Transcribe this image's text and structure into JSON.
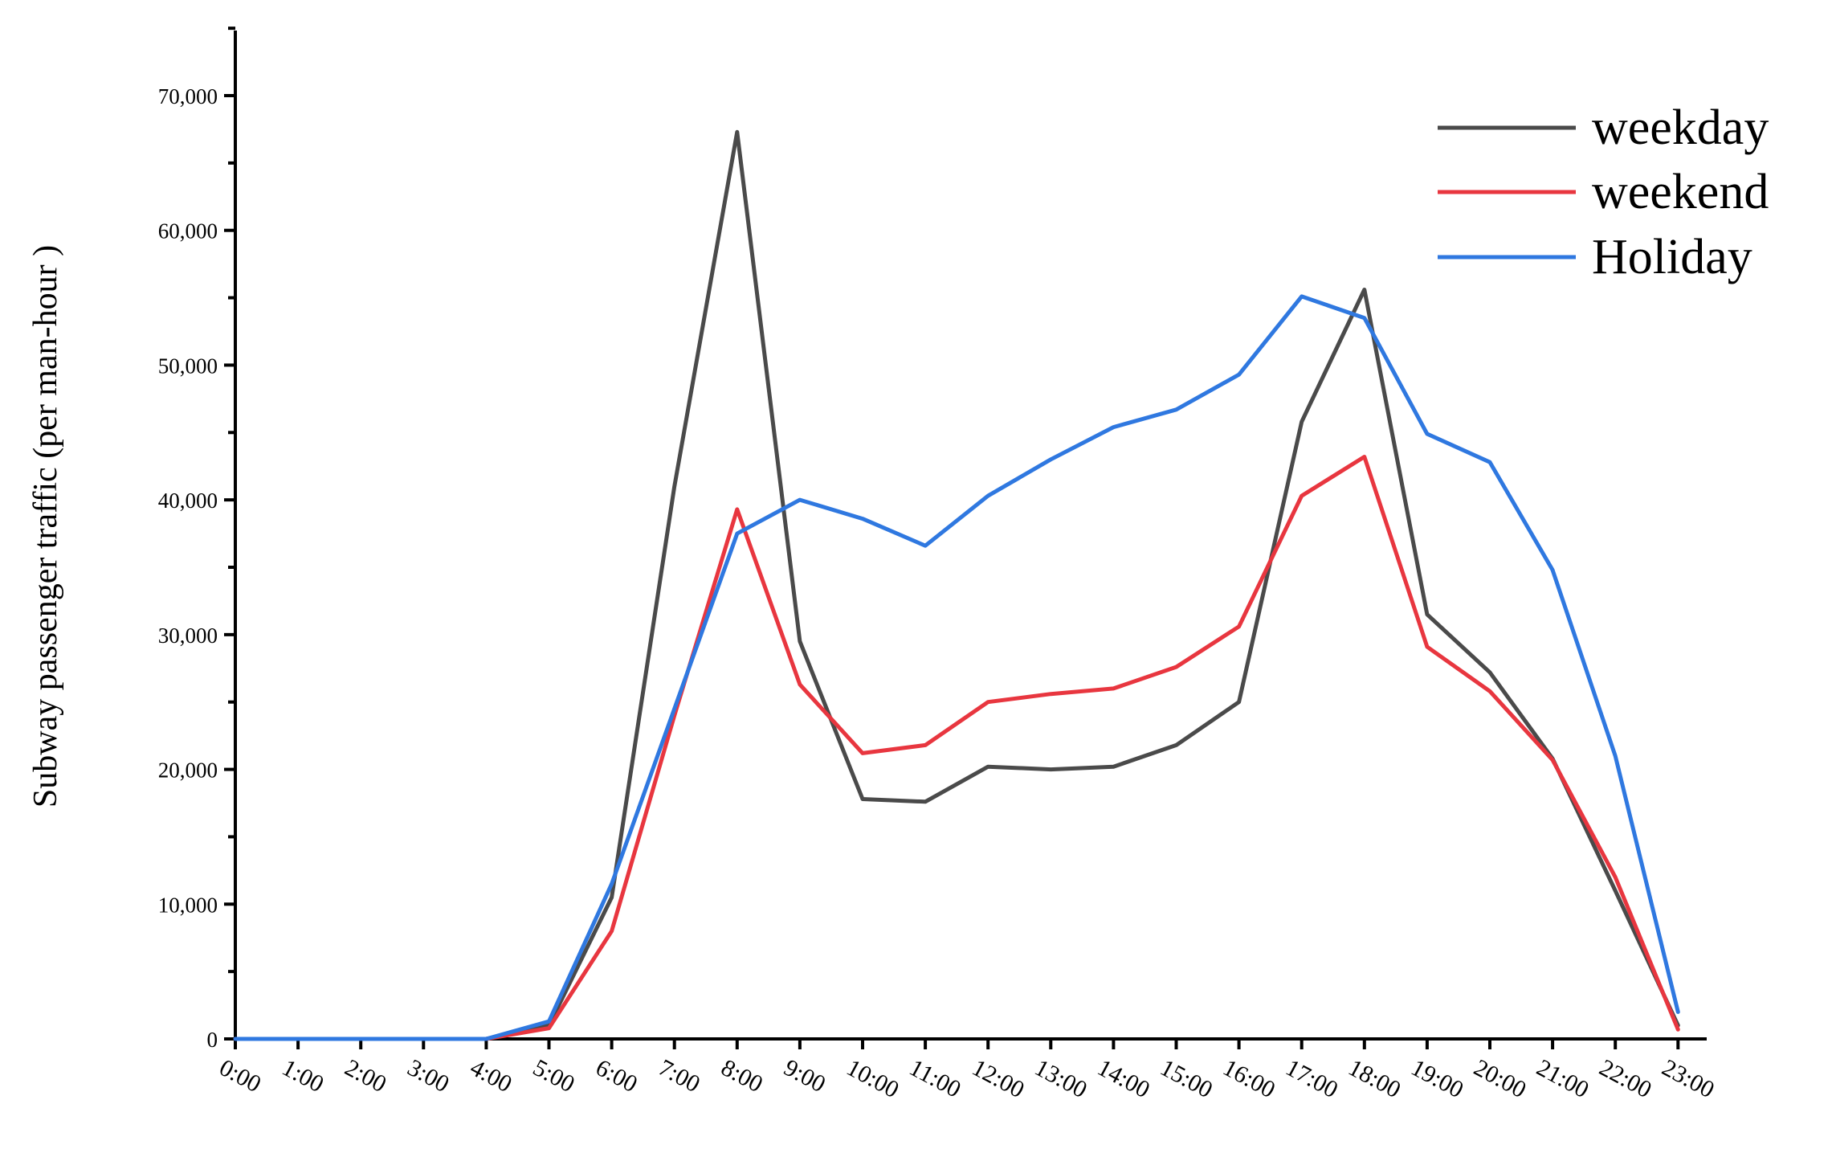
{
  "chart_data": {
    "type": "line",
    "title": "",
    "xlabel": "",
    "ylabel": "Subway passenger traffic (per man-hour )",
    "categories": [
      "0:00",
      "1:00",
      "2:00",
      "3:00",
      "4:00",
      "5:00",
      "6:00",
      "7:00",
      "8:00",
      "9:00",
      "10:00",
      "11:00",
      "12:00",
      "13:00",
      "14:00",
      "15:00",
      "16:00",
      "17:00",
      "18:00",
      "19:00",
      "20:00",
      "21:00",
      "22:00",
      "23:00"
    ],
    "ylim": [
      0,
      75000
    ],
    "yticks": [
      0,
      10000,
      20000,
      30000,
      40000,
      50000,
      60000,
      70000
    ],
    "ytick_labels": [
      "0",
      "10,000",
      "20,000",
      "30,000",
      "40,000",
      "50,000",
      "60,000",
      "70,000"
    ],
    "grid": false,
    "legend_position": "top-right",
    "series": [
      {
        "name": "weekday",
        "color": "#4a4a4a",
        "values": [
          0,
          0,
          0,
          0,
          0,
          1000,
          10500,
          41000,
          67300,
          29500,
          17800,
          17600,
          20200,
          20000,
          20200,
          21800,
          25000,
          45800,
          55600,
          31500,
          27200,
          20800,
          11000,
          1000
        ]
      },
      {
        "name": "weekend",
        "color": "#e8363f",
        "values": [
          0,
          0,
          0,
          0,
          0,
          800,
          8000,
          24000,
          39300,
          26300,
          21200,
          21800,
          25000,
          25600,
          26000,
          27600,
          30600,
          40300,
          43200,
          29100,
          25800,
          20700,
          12000,
          700
        ]
      },
      {
        "name": "Holiday",
        "color": "#2f78e0",
        "values": [
          0,
          0,
          0,
          0,
          0,
          1300,
          11500,
          24500,
          37500,
          40000,
          38600,
          36600,
          40300,
          43000,
          45400,
          46700,
          49300,
          55100,
          53500,
          44900,
          42800,
          34800,
          21000,
          2000
        ]
      }
    ]
  }
}
